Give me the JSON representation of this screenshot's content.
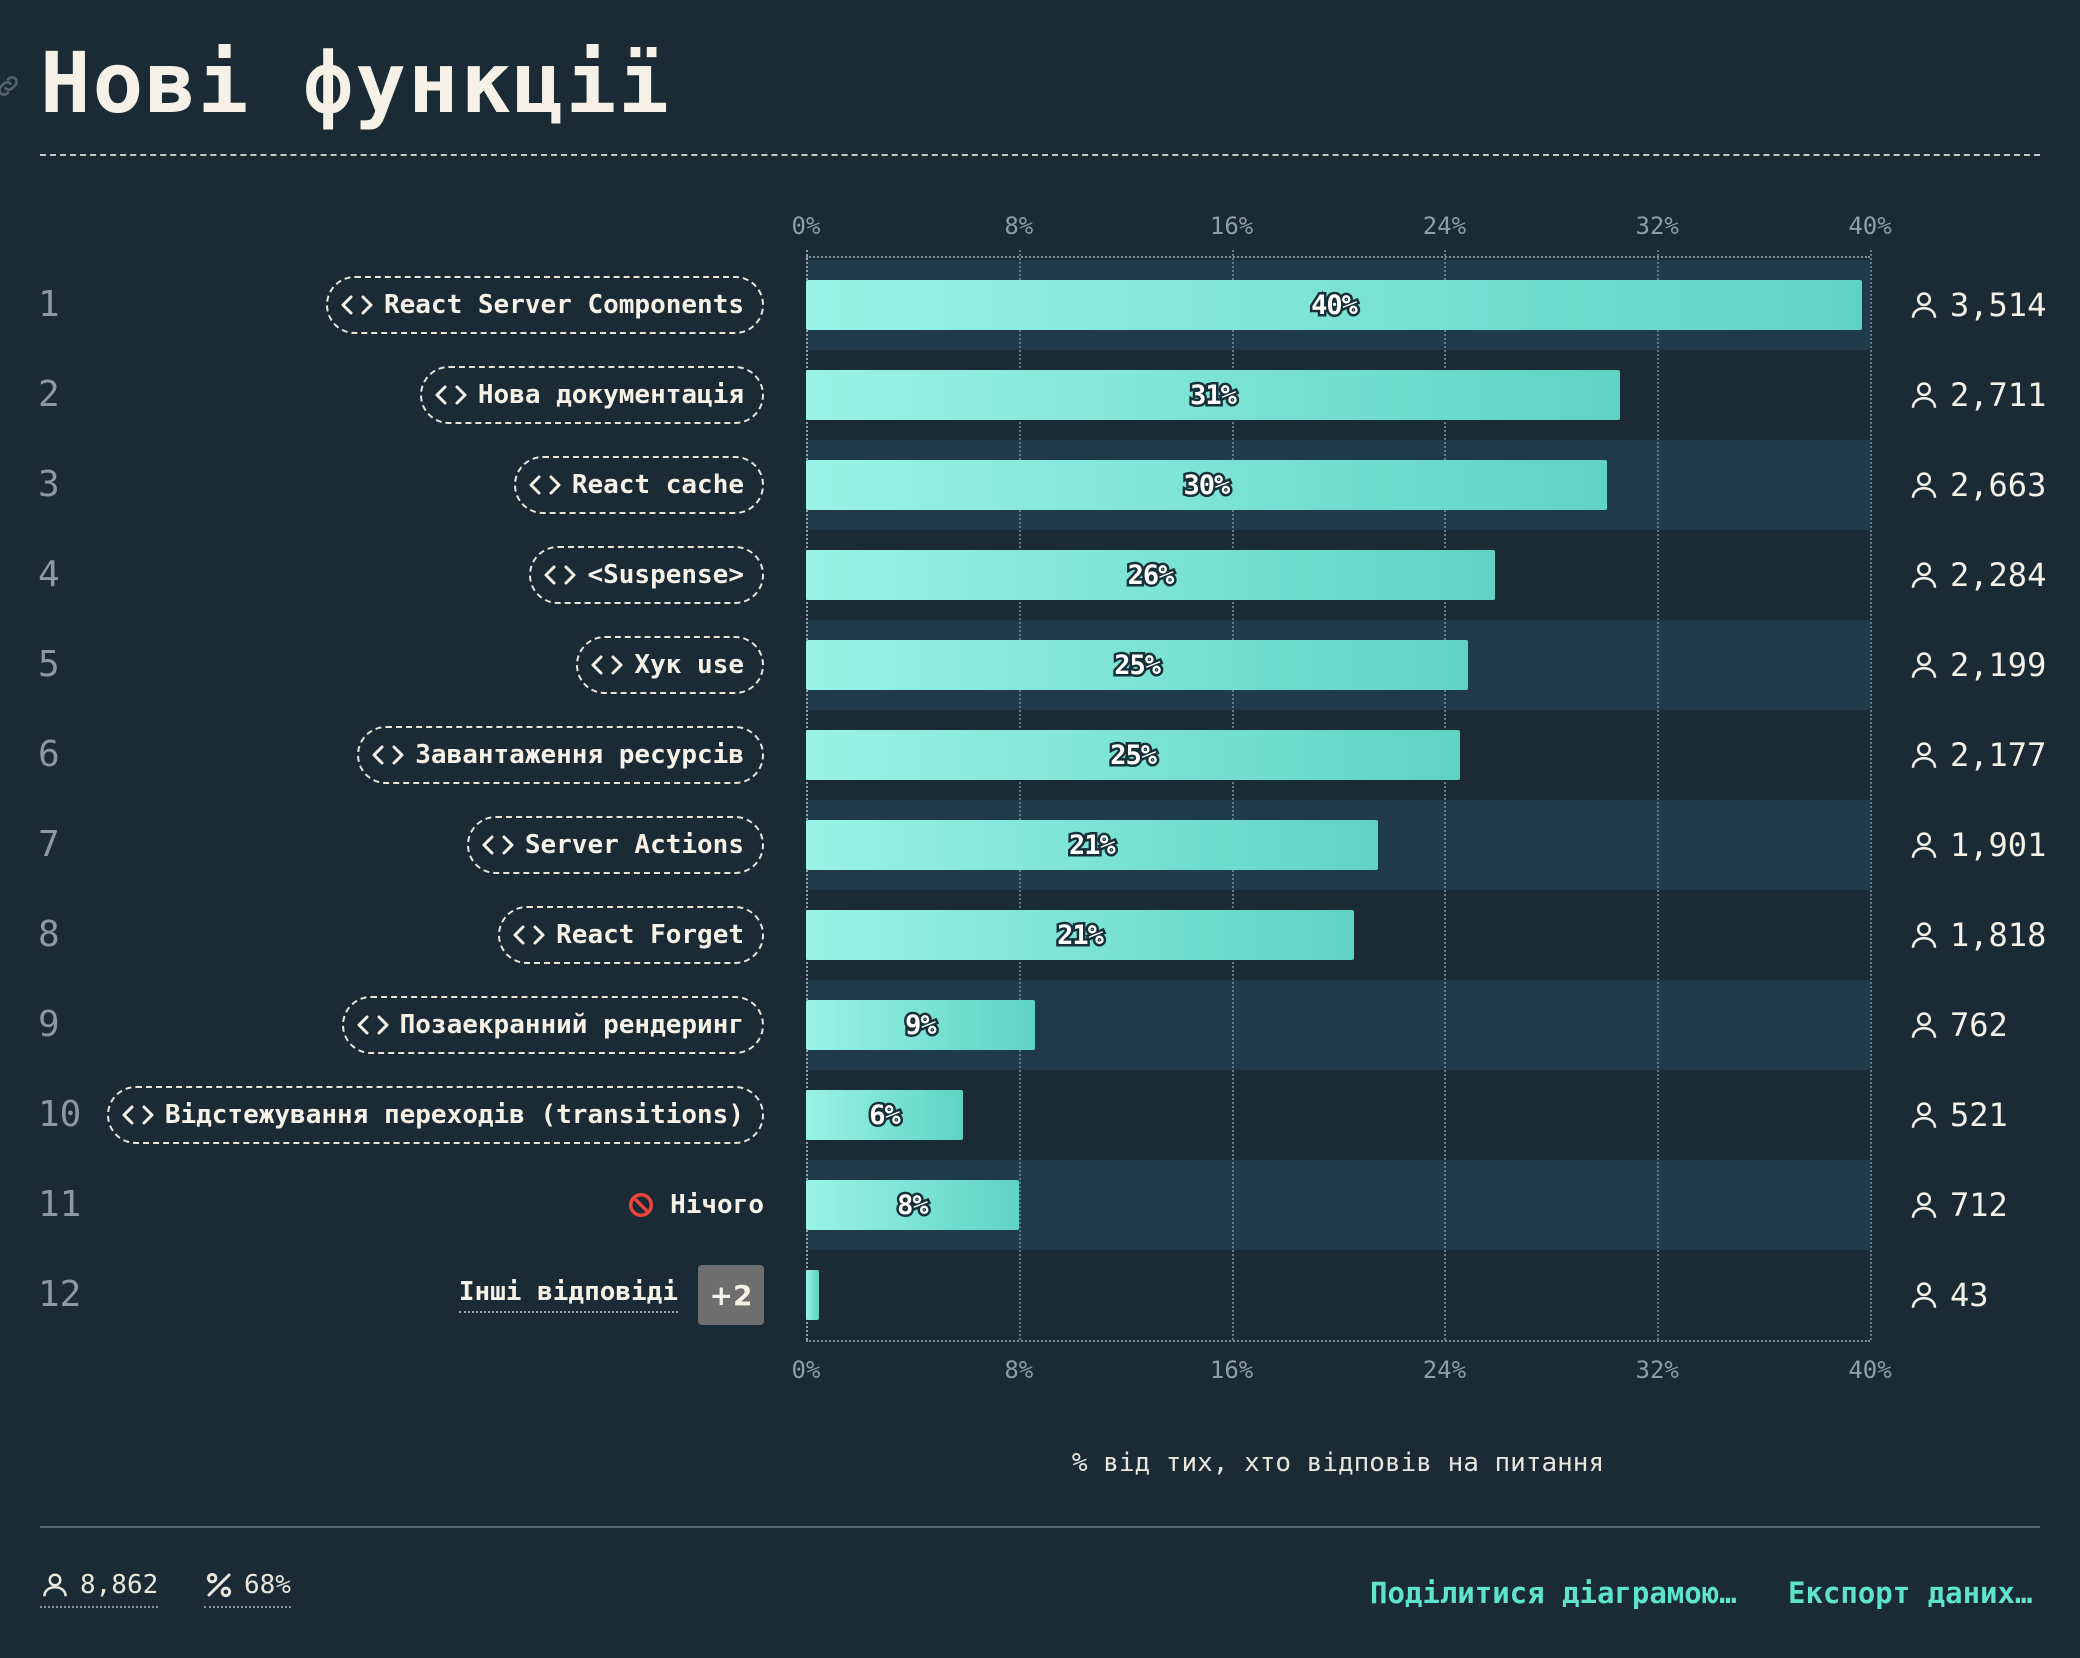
{
  "page": {
    "title": "Нові функції",
    "x_axis_title": "% від тих, хто відповів на питання",
    "footer": {
      "respondents": "8,862",
      "percent_answered": "68%",
      "share_link": "Поділитися діаграмою…",
      "export_link": "Експорт даних…"
    },
    "other_answers_badge": "+2"
  },
  "chart_data": {
    "type": "bar",
    "orientation": "horizontal",
    "title": "Нові функції",
    "xlabel": "% від тих, хто відповів на питання",
    "xlim": [
      0,
      40
    ],
    "x_ticks": [
      "0%",
      "8%",
      "16%",
      "24%",
      "32%",
      "40%"
    ],
    "grid": true,
    "categories": [
      "React Server Components",
      "Нова документація",
      "React cache",
      "<Suspense>",
      "Хук use",
      "Завантаження ресурсів",
      "Server Actions",
      "React Forget",
      "Позаекранний рендеринг",
      "Відстежування переходів (transitions)",
      "Нічого",
      "Інші відповіді"
    ],
    "ranks": [
      "1",
      "2",
      "3",
      "4",
      "5",
      "6",
      "7",
      "8",
      "9",
      "10",
      "11",
      "12"
    ],
    "values": [
      39.7,
      30.6,
      30.1,
      25.9,
      24.9,
      24.6,
      21.5,
      20.6,
      8.6,
      5.9,
      8.0,
      0.5
    ],
    "value_labels": [
      "40%",
      "31%",
      "30%",
      "26%",
      "25%",
      "25%",
      "21%",
      "21%",
      "9%",
      "6%",
      "8%",
      ""
    ],
    "counts": [
      "3,514",
      "2,711",
      "2,663",
      "2,284",
      "2,199",
      "2,177",
      "1,901",
      "1,818",
      "762",
      "521",
      "712",
      "43"
    ],
    "label_kinds": [
      "feature",
      "feature",
      "feature",
      "feature",
      "feature",
      "feature",
      "feature",
      "feature",
      "feature",
      "feature",
      "none",
      "other"
    ],
    "bar_color_start": "#99f3e6",
    "bar_color_end": "#5fd3c3",
    "band_color": "#213a4a",
    "background_color": "#1b2b35",
    "accent_color": "#5ee3cc"
  }
}
